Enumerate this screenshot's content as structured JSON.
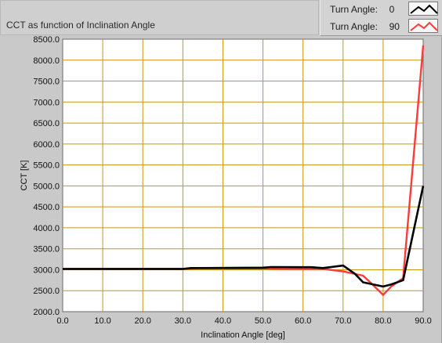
{
  "title": "CCT as function of Inclination Angle",
  "legend": [
    {
      "label": "Turn Angle:",
      "value": "0",
      "color": "#000000"
    },
    {
      "label": "Turn Angle:",
      "value": "90",
      "color": "#ff3a3a"
    }
  ],
  "chart_data": {
    "type": "line",
    "xlabel": "Inclination Angle [deg]",
    "ylabel": "CCT [K]",
    "xlim": [
      0,
      90
    ],
    "ylim": [
      2000,
      8500
    ],
    "grid": true,
    "legend_position": "top-right",
    "x_ticks": [
      "0.0",
      "10.0",
      "20.0",
      "30.0",
      "40.0",
      "50.0",
      "60.0",
      "70.0",
      "80.0",
      "90.0"
    ],
    "y_ticks": [
      "2000.0",
      "2500.0",
      "3000.0",
      "3500.0",
      "4000.0",
      "4500.0",
      "5000.0",
      "5500.0",
      "6000.0",
      "6500.0",
      "7000.0",
      "7500.0",
      "8000.0",
      "8500.0"
    ],
    "series": [
      {
        "name": "Turn Angle: 0",
        "color": "#000000",
        "x": [
          0,
          10,
          20,
          30,
          32,
          50,
          52,
          62,
          65,
          70,
          73,
          75,
          80,
          82,
          85,
          90
        ],
        "y": [
          3020,
          3020,
          3020,
          3020,
          3040,
          3050,
          3065,
          3060,
          3040,
          3100,
          2900,
          2700,
          2600,
          2650,
          2750,
          5000
        ]
      },
      {
        "name": "Turn Angle: 90",
        "color": "#ff3a3a",
        "x": [
          0,
          10,
          20,
          30,
          33,
          50,
          55,
          60,
          65,
          70,
          75,
          77,
          80,
          82,
          85,
          90
        ],
        "y": [
          3020,
          3020,
          3020,
          3020,
          3030,
          3030,
          3020,
          3020,
          3020,
          2960,
          2860,
          2680,
          2400,
          2600,
          2800,
          8350
        ]
      }
    ]
  }
}
